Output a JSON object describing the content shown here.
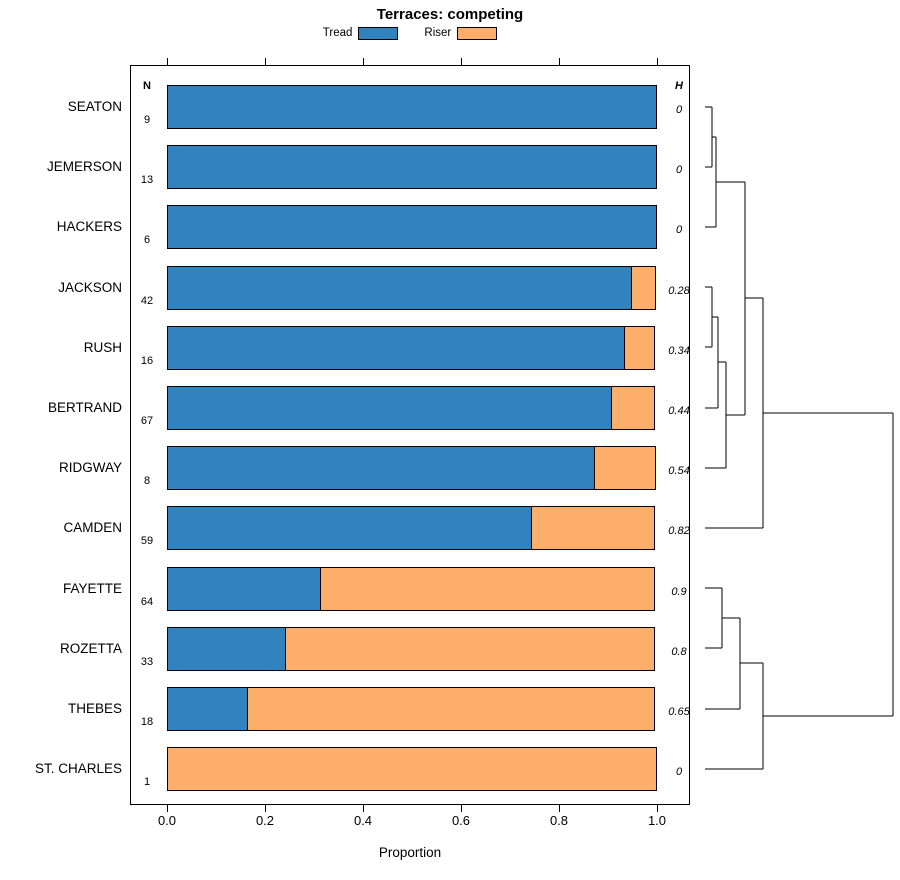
{
  "chart_data": {
    "type": "bar",
    "subtype": "horizontal-stacked-proportion-with-dendrogram",
    "title": "Terraces: competing",
    "xlabel": "Proportion",
    "xlim": [
      0,
      1
    ],
    "xticks": [
      "0.0",
      "0.2",
      "0.4",
      "0.6",
      "0.8",
      "1.0"
    ],
    "grid": false,
    "legend_position": "top-center",
    "legend": [
      {
        "name": "Tread",
        "color": "#3182BD"
      },
      {
        "name": "Riser",
        "color": "#FDAE6B"
      }
    ],
    "columns": {
      "n_header": "N",
      "h_header": "H"
    },
    "series_note": "tread + riser proportions sum to 1 for each row",
    "rows": [
      {
        "label": "SEATON",
        "n": 9,
        "tread": 1.0,
        "riser": 0.0,
        "h": "0"
      },
      {
        "label": "JEMERSON",
        "n": 13,
        "tread": 1.0,
        "riser": 0.0,
        "h": "0"
      },
      {
        "label": "HACKERS",
        "n": 6,
        "tread": 1.0,
        "riser": 0.0,
        "h": "0"
      },
      {
        "label": "JACKSON",
        "n": 42,
        "tread": 0.95,
        "riser": 0.05,
        "h": "0.28"
      },
      {
        "label": "RUSH",
        "n": 16,
        "tread": 0.935,
        "riser": 0.065,
        "h": "0.34"
      },
      {
        "label": "BERTRAND",
        "n": 67,
        "tread": 0.91,
        "riser": 0.09,
        "h": "0.44"
      },
      {
        "label": "RIDGWAY",
        "n": 8,
        "tread": 0.875,
        "riser": 0.125,
        "h": "0.54"
      },
      {
        "label": "CAMDEN",
        "n": 59,
        "tread": 0.745,
        "riser": 0.255,
        "h": "0.82"
      },
      {
        "label": "FAYETTE",
        "n": 64,
        "tread": 0.315,
        "riser": 0.685,
        "h": "0.9"
      },
      {
        "label": "ROZETTA",
        "n": 33,
        "tread": 0.243,
        "riser": 0.757,
        "h": "0.8"
      },
      {
        "label": "THEBES",
        "n": 18,
        "tread": 0.167,
        "riser": 0.833,
        "h": "0.65"
      },
      {
        "label": "ST. CHARLES",
        "n": 1,
        "tread": 0.0,
        "riser": 1.0,
        "h": "0"
      }
    ],
    "dendrogram_segments": [
      [
        10,
        107,
        17,
        107
      ],
      [
        10,
        167,
        17,
        167
      ],
      [
        17,
        107,
        17,
        167
      ],
      [
        17,
        137,
        21,
        137
      ],
      [
        10,
        227,
        21,
        227
      ],
      [
        21,
        137,
        21,
        227
      ],
      [
        10,
        287,
        17,
        287
      ],
      [
        10,
        347,
        17,
        347
      ],
      [
        17,
        287,
        17,
        347
      ],
      [
        17,
        317,
        23,
        317
      ],
      [
        10,
        408,
        23,
        408
      ],
      [
        23,
        317,
        23,
        408
      ],
      [
        23,
        362,
        31,
        362
      ],
      [
        10,
        468,
        31,
        468
      ],
      [
        31,
        362,
        31,
        468
      ],
      [
        21,
        182,
        50,
        182
      ],
      [
        31,
        415,
        50,
        415
      ],
      [
        50,
        182,
        50,
        415
      ],
      [
        10,
        528,
        68,
        528
      ],
      [
        50,
        298,
        68,
        298
      ],
      [
        68,
        298,
        68,
        528
      ],
      [
        10,
        588,
        27,
        588
      ],
      [
        10,
        648,
        27,
        648
      ],
      [
        27,
        588,
        27,
        648
      ],
      [
        27,
        618,
        45,
        618
      ],
      [
        10,
        709,
        45,
        709
      ],
      [
        45,
        618,
        45,
        709
      ],
      [
        45,
        663,
        68,
        663
      ],
      [
        10,
        769,
        68,
        769
      ],
      [
        68,
        663,
        68,
        769
      ],
      [
        68,
        413,
        198,
        413
      ],
      [
        68,
        716,
        198,
        716
      ],
      [
        198,
        413,
        198,
        716
      ]
    ]
  }
}
